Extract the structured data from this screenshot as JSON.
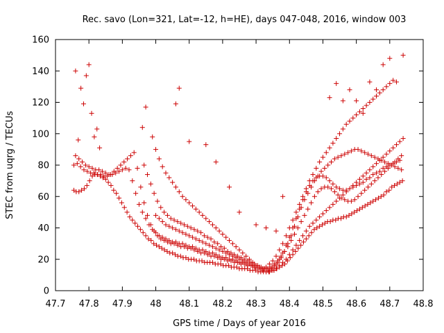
{
  "chart_data": {
    "type": "scatter",
    "title": "Rec. savo (Lon=321, Lat=-12, h=HE), days 047-048, 2016, window 003",
    "xlabel": "GPS time / Days of year 2016",
    "ylabel": "STEC from uqrg / TECUs",
    "xlim": [
      47.7,
      48.8
    ],
    "ylim": [
      0,
      160
    ],
    "xticks": [
      "47.7",
      "47.8",
      "47.9",
      "48",
      "48.1",
      "48.2",
      "48.3",
      "48.4",
      "48.5",
      "48.6",
      "48.7",
      "48.8"
    ],
    "yticks": [
      "0",
      "20",
      "40",
      "60",
      "80",
      "100",
      "120",
      "140",
      "160"
    ],
    "grid": false,
    "marker": "+",
    "color": "#cc0000",
    "series": [
      {
        "x": [
          47.755,
          47.762,
          47.77,
          47.778,
          47.786,
          47.794,
          47.802,
          47.81,
          47.818,
          47.826,
          47.834,
          47.842,
          47.85,
          47.858,
          47.866,
          47.874,
          47.882,
          47.89,
          47.898,
          47.906,
          47.914,
          47.922,
          47.93,
          47.938,
          47.946,
          47.954,
          47.962,
          47.97,
          47.978,
          47.986,
          47.994,
          48.002,
          48.01,
          48.018,
          48.026,
          48.034,
          48.042,
          48.05,
          48.058,
          48.066,
          48.074,
          48.082,
          48.09,
          48.098,
          48.106,
          48.114,
          48.122,
          48.13,
          48.138,
          48.146,
          48.154,
          48.162,
          48.17,
          48.178,
          48.186,
          48.194,
          48.202,
          48.21,
          48.218,
          48.226,
          48.234,
          48.242,
          48.25,
          48.258,
          48.266,
          48.274,
          48.282,
          48.29,
          48.298,
          48.306,
          48.314,
          48.322,
          48.33,
          48.338,
          48.346,
          48.354,
          48.362,
          48.37,
          48.378,
          48.386,
          48.394,
          48.402,
          48.41,
          48.418,
          48.426,
          48.434,
          48.442,
          48.45,
          48.458,
          48.466,
          48.474,
          48.482,
          48.49,
          48.498,
          48.506,
          48.514,
          48.522,
          48.53,
          48.538,
          48.546,
          48.554,
          48.562,
          48.57,
          48.578,
          48.586,
          48.594,
          48.602,
          48.61,
          48.618,
          48.626,
          48.634,
          48.642,
          48.65,
          48.658,
          48.666,
          48.674,
          48.682,
          48.69,
          48.698,
          48.706,
          48.714,
          48.722,
          48.73,
          48.738
        ],
        "y": [
          64,
          63,
          63,
          64,
          65,
          67,
          70,
          73,
          74,
          74,
          73,
          72,
          71,
          69,
          67,
          64,
          62,
          59,
          56,
          53,
          50,
          47,
          45,
          43,
          41,
          39,
          37,
          35,
          33,
          32,
          30,
          29,
          28,
          27,
          26,
          25,
          24,
          24,
          23,
          22,
          22,
          21,
          21,
          20,
          20,
          20,
          19,
          19,
          19,
          18,
          18,
          18,
          18,
          17,
          17,
          17,
          16,
          16,
          16,
          15,
          15,
          15,
          14,
          14,
          14,
          14,
          13,
          13,
          13,
          12,
          12,
          12,
          12,
          12,
          13,
          13,
          14,
          15,
          16,
          17,
          19,
          21,
          23,
          25,
          27,
          29,
          31,
          33,
          35,
          37,
          39,
          40,
          41,
          42,
          43,
          44,
          44,
          45,
          45,
          46,
          46,
          47,
          47,
          48,
          49,
          50,
          51,
          52,
          53,
          54,
          55,
          56,
          57,
          58,
          59,
          60,
          61,
          63,
          64,
          66,
          67,
          68,
          69,
          70
        ]
      },
      {
        "x": [
          47.755,
          47.765,
          47.775,
          47.785,
          47.795,
          47.805,
          47.815,
          47.825,
          47.835,
          47.845,
          47.855,
          47.865,
          47.875,
          47.885,
          47.895,
          47.905,
          47.915,
          47.925,
          47.935,
          47.945,
          47.955,
          47.965,
          47.975,
          47.985,
          47.995,
          48.005,
          48.015,
          48.025,
          48.035,
          48.045,
          48.055,
          48.065,
          48.075,
          48.085,
          48.095,
          48.105,
          48.115,
          48.125,
          48.135,
          48.145,
          48.155,
          48.165,
          48.175,
          48.185,
          48.195,
          48.205,
          48.215,
          48.225,
          48.235,
          48.245,
          48.255,
          48.265,
          48.275,
          48.285,
          48.295,
          48.305,
          48.315,
          48.325,
          48.335,
          48.345,
          48.355,
          48.365,
          48.375,
          48.385,
          48.395,
          48.405,
          48.415,
          48.425,
          48.435,
          48.445,
          48.455,
          48.465,
          48.475,
          48.485,
          48.495,
          48.505,
          48.515,
          48.525,
          48.535,
          48.545,
          48.555,
          48.565,
          48.575,
          48.585,
          48.595,
          48.605,
          48.615,
          48.625,
          48.635,
          48.645,
          48.655,
          48.665,
          48.675,
          48.685,
          48.695,
          48.705,
          48.715,
          48.725,
          48.735
        ],
        "y": [
          80,
          81,
          79,
          77,
          76,
          75,
          75,
          74,
          74,
          73,
          73,
          74,
          76,
          78,
          80,
          82,
          84,
          86,
          88,
          78,
          66,
          56,
          48,
          42,
          38,
          35,
          33,
          32,
          31,
          30,
          30,
          29,
          28,
          28,
          27,
          27,
          26,
          25,
          24,
          24,
          23,
          22,
          22,
          21,
          20,
          20,
          19,
          19,
          18,
          18,
          17,
          17,
          16,
          16,
          15,
          15,
          14,
          14,
          14,
          15,
          17,
          19,
          22,
          25,
          28,
          32,
          36,
          40,
          44,
          48,
          52,
          56,
          60,
          63,
          65,
          66,
          66,
          65,
          63,
          61,
          59,
          58,
          57,
          57,
          58,
          60,
          62,
          64,
          66,
          68,
          70,
          72,
          74,
          76,
          78,
          80,
          82,
          84,
          86
        ]
      },
      {
        "x": [
          47.76,
          47.77,
          47.78,
          47.79,
          47.8,
          47.81,
          47.82,
          47.83,
          47.84,
          47.85,
          47.86,
          47.87,
          47.88,
          47.89,
          47.9,
          47.91,
          47.92,
          47.93,
          47.94,
          47.95,
          47.96,
          47.97,
          47.98,
          47.99,
          48.0,
          48.01,
          48.02,
          48.03,
          48.04,
          48.05,
          48.06,
          48.07,
          48.08,
          48.09,
          48.1,
          48.11,
          48.12,
          48.13,
          48.14,
          48.15,
          48.16,
          48.17,
          48.18,
          48.19,
          48.2,
          48.21,
          48.22,
          48.23,
          48.24,
          48.25,
          48.26,
          48.27,
          48.28,
          48.29,
          48.3,
          48.31,
          48.32,
          48.33,
          48.34,
          48.35,
          48.36,
          48.37,
          48.38,
          48.39,
          48.4,
          48.41,
          48.42,
          48.43,
          48.44,
          48.45,
          48.46,
          48.47,
          48.48,
          48.49,
          48.5,
          48.51,
          48.52,
          48.53,
          48.54,
          48.55,
          48.56,
          48.57,
          48.58,
          48.59,
          48.6,
          48.61,
          48.62,
          48.63,
          48.64,
          48.65,
          48.66,
          48.67,
          48.68,
          48.69,
          48.7,
          48.71,
          48.72,
          48.73
        ],
        "y": [
          86,
          84,
          82,
          80,
          79,
          78,
          77,
          77,
          76,
          75,
          74,
          74,
          75,
          76,
          77,
          78,
          77,
          70,
          62,
          55,
          50,
          46,
          42,
          39,
          37,
          35,
          34,
          33,
          32,
          31,
          31,
          30,
          30,
          29,
          28,
          28,
          27,
          26,
          26,
          25,
          24,
          24,
          23,
          22,
          21,
          21,
          20,
          20,
          19,
          18,
          18,
          17,
          17,
          16,
          15,
          15,
          14,
          14,
          14,
          15,
          17,
          20,
          24,
          29,
          34,
          40,
          46,
          52,
          58,
          63,
          67,
          70,
          72,
          73,
          73,
          72,
          70,
          68,
          66,
          65,
          64,
          64,
          65,
          66,
          67,
          68,
          69,
          71,
          72,
          74,
          75,
          76,
          78,
          79,
          80,
          81,
          82,
          83
        ]
      },
      {
        "x": [
          47.965,
          47.975,
          47.985,
          47.995,
          48.005,
          48.015,
          48.025,
          48.035,
          48.045,
          48.055,
          48.065,
          48.075,
          48.085,
          48.095,
          48.105,
          48.115,
          48.125,
          48.135,
          48.145,
          48.155,
          48.165,
          48.175,
          48.185,
          48.195,
          48.205,
          48.215,
          48.225,
          48.235,
          48.245,
          48.255,
          48.265,
          48.275,
          48.285,
          48.295,
          48.305,
          48.315,
          48.325,
          48.335,
          48.345,
          48.355,
          48.365,
          48.375,
          48.385,
          48.395,
          48.405,
          48.415,
          48.425,
          48.435,
          48.445,
          48.455,
          48.465,
          48.475,
          48.485,
          48.495,
          48.505,
          48.515,
          48.525,
          48.535,
          48.545,
          48.555,
          48.565,
          48.575,
          48.585,
          48.595,
          48.605,
          48.615,
          48.625,
          48.635,
          48.645,
          48.655,
          48.665,
          48.675,
          48.685,
          48.695,
          48.705,
          48.715,
          48.725,
          48.735
        ],
        "y": [
          80,
          74,
          68,
          62,
          57,
          53,
          50,
          48,
          46,
          45,
          44,
          43,
          42,
          41,
          40,
          39,
          38,
          37,
          35,
          34,
          33,
          31,
          30,
          28,
          27,
          25,
          24,
          23,
          22,
          21,
          20,
          19,
          18,
          17,
          16,
          15,
          14,
          13,
          14,
          16,
          18,
          21,
          25,
          30,
          35,
          41,
          47,
          53,
          58,
          62,
          66,
          70,
          73,
          76,
          78,
          80,
          82,
          84,
          85,
          86,
          87,
          88,
          89,
          90,
          90,
          89,
          88,
          87,
          86,
          85,
          84,
          83,
          82,
          81,
          80,
          79,
          78,
          77
        ]
      },
      {
        "x": [
          47.99,
          48.0,
          48.01,
          48.02,
          48.03,
          48.04,
          48.05,
          48.06,
          48.07,
          48.08,
          48.09,
          48.1,
          48.11,
          48.12,
          48.13,
          48.14,
          48.15,
          48.16,
          48.17,
          48.18,
          48.19,
          48.2,
          48.21,
          48.22,
          48.23,
          48.24,
          48.25,
          48.26,
          48.27,
          48.28,
          48.29,
          48.3,
          48.31,
          48.32,
          48.33,
          48.34,
          48.35,
          48.36,
          48.37,
          48.38,
          48.39,
          48.4,
          48.41,
          48.42,
          48.43,
          48.44,
          48.45,
          48.46,
          48.47,
          48.48,
          48.49,
          48.5,
          48.51,
          48.52,
          48.53,
          48.54,
          48.55,
          48.56,
          48.57,
          48.58,
          48.59,
          48.6,
          48.61,
          48.62,
          48.63,
          48.64,
          48.65,
          48.66,
          48.67,
          48.68,
          48.69,
          48.7,
          48.71
        ],
        "y": [
          98,
          90,
          84,
          79,
          75,
          72,
          69,
          66,
          63,
          60,
          58,
          56,
          54,
          52,
          50,
          48,
          46,
          44,
          42,
          40,
          38,
          36,
          34,
          32,
          30,
          28,
          26,
          24,
          22,
          20,
          18,
          16,
          15,
          14,
          15,
          17,
          19,
          22,
          26,
          30,
          35,
          40,
          45,
          50,
          55,
          60,
          65,
          70,
          74,
          78,
          82,
          85,
          88,
          91,
          94,
          97,
          100,
          103,
          106,
          108,
          110,
          112,
          114,
          116,
          118,
          120,
          122,
          124,
          126,
          128,
          130,
          132,
          134
        ]
      },
      {
        "x": [
          48.0,
          48.01,
          48.02,
          48.03,
          48.04,
          48.05,
          48.06,
          48.07,
          48.08,
          48.09,
          48.1,
          48.11,
          48.12,
          48.13,
          48.14,
          48.15,
          48.16,
          48.17,
          48.18,
          48.19,
          48.2,
          48.21,
          48.22,
          48.23,
          48.24,
          48.25,
          48.26,
          48.27,
          48.28,
          48.29,
          48.3,
          48.31,
          48.32,
          48.33,
          48.34,
          48.35,
          48.36,
          48.37,
          48.38,
          48.39,
          48.4,
          48.41,
          48.42,
          48.43,
          48.44,
          48.45,
          48.46,
          48.47,
          48.48,
          48.49,
          48.5,
          48.51,
          48.52,
          48.53,
          48.54,
          48.55,
          48.56,
          48.57,
          48.58,
          48.59,
          48.6,
          48.61,
          48.62,
          48.63,
          48.64,
          48.65,
          48.66,
          48.67,
          48.68,
          48.69,
          48.7,
          48.71,
          48.72,
          48.73,
          48.74
        ],
        "y": [
          48,
          46,
          44,
          42,
          41,
          40,
          39,
          38,
          37,
          36,
          35,
          34,
          33,
          32,
          31,
          30,
          29,
          28,
          27,
          26,
          25,
          24,
          23,
          22,
          21,
          20,
          19,
          18,
          17,
          16,
          15,
          14,
          13,
          12,
          12,
          13,
          14,
          16,
          18,
          20,
          23,
          26,
          29,
          32,
          35,
          38,
          41,
          43,
          45,
          47,
          49,
          51,
          53,
          55,
          57,
          59,
          61,
          63,
          65,
          67,
          69,
          71,
          73,
          75,
          77,
          79,
          81,
          83,
          85,
          87,
          89,
          91,
          93,
          95,
          97
        ]
      },
      {
        "x": [
          47.76,
          47.768,
          47.776,
          47.784,
          47.792,
          47.8,
          47.808,
          47.816,
          47.824,
          47.832,
          47.96,
          47.97,
          48.06,
          48.07,
          48.1,
          48.15,
          48.18,
          48.22,
          48.25,
          48.3,
          48.33,
          48.36,
          48.38,
          48.52,
          48.54,
          48.56,
          48.58,
          48.6,
          48.62,
          48.64,
          48.66,
          48.68,
          48.7,
          48.72,
          48.74
        ],
        "y": [
          140,
          96,
          129,
          119,
          137,
          144,
          113,
          98,
          103,
          91,
          104,
          117,
          119,
          129,
          95,
          93,
          82,
          66,
          50,
          42,
          40,
          38,
          60,
          123,
          132,
          121,
          128,
          121,
          113,
          133,
          128,
          144,
          148,
          133,
          150
        ]
      }
    ]
  }
}
